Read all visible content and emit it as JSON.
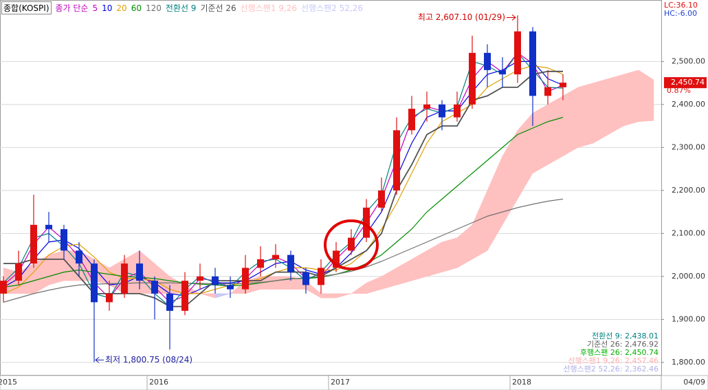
{
  "chart_data": {
    "type": "candlestick",
    "title": "종합(KOSPI)",
    "legend_prefix": "종가 단순",
    "categories": [
      "2015",
      null,
      null,
      null,
      null,
      null,
      null,
      null,
      null,
      null,
      "2016",
      null,
      null,
      null,
      null,
      null,
      null,
      null,
      null,
      null,
      null,
      null,
      "2017",
      null,
      null,
      null,
      null,
      null,
      null,
      null,
      null,
      null,
      null,
      null,
      "2018",
      null,
      null,
      null,
      null,
      null,
      null,
      null,
      null,
      null
    ],
    "open": [
      1960,
      1990,
      2030,
      2120,
      2110,
      2060,
      2030,
      1940,
      1960,
      2030,
      1990,
      1960,
      1920,
      1990,
      2000,
      1980,
      1970,
      2020,
      2040,
      2050,
      2010,
      1980,
      2020,
      2060,
      2090,
      2160,
      2200,
      2340,
      2390,
      2400,
      2370,
      2400,
      2520,
      2480,
      2470,
      2570,
      2420,
      2440,
      null,
      null,
      null,
      null,
      null,
      null
    ],
    "high": [
      2000,
      2060,
      2190,
      2150,
      2120,
      2080,
      2040,
      1990,
      2050,
      2060,
      2000,
      1980,
      2010,
      2030,
      2020,
      2000,
      2050,
      2070,
      2075,
      2060,
      2020,
      2040,
      2080,
      2110,
      2180,
      2230,
      2370,
      2420,
      2430,
      2410,
      2430,
      2560,
      2540,
      2510,
      2607.1,
      2580,
      2480,
      2470,
      null,
      null,
      null,
      null,
      null,
      null
    ],
    "low": [
      1940,
      1980,
      2020,
      2080,
      2040,
      2000,
      1800.75,
      1920,
      1950,
      1970,
      1900,
      1830,
      1910,
      1970,
      1960,
      1950,
      1960,
      2000,
      2020,
      1990,
      1960,
      1960,
      2010,
      2050,
      2080,
      2150,
      2190,
      2330,
      2360,
      2340,
      2360,
      2390,
      2440,
      2440,
      2450,
      2350,
      2400,
      2410,
      null,
      null,
      null,
      null,
      null,
      null
    ],
    "close": [
      1990,
      2030,
      2120,
      2110,
      2060,
      2030,
      1940,
      1960,
      2030,
      1990,
      1960,
      1920,
      1990,
      2000,
      1980,
      1970,
      2020,
      2040,
      2050,
      2010,
      1980,
      2020,
      2060,
      2090,
      2160,
      2200,
      2340,
      2390,
      2400,
      2370,
      2400,
      2520,
      2480,
      2470,
      2570,
      2420,
      2440,
      2450.74,
      null,
      null,
      null,
      null,
      null,
      null
    ],
    "up_color": "#e01010",
    "down_color": "#1030c8",
    "series": [
      {
        "name": "5",
        "color": "#c000c0",
        "values": [
          1980,
          2010,
          2075,
          2115,
          2085,
          2045,
          1985,
          1950,
          1995,
          2010,
          1975,
          1940,
          1955,
          1995,
          1990,
          1975,
          1995,
          2030,
          2045,
          2030,
          1995,
          2000,
          2040,
          2075,
          2125,
          2180,
          2270,
          2365,
          2395,
          2385,
          2385,
          2460,
          2500,
          2475,
          2520,
          2495,
          2430,
          2445,
          null,
          null,
          null,
          null,
          null,
          null
        ]
      },
      {
        "name": "10",
        "color": "#0000e0",
        "values": [
          1975,
          1995,
          2040,
          2080,
          2085,
          2065,
          2020,
          1980,
          1985,
          2000,
          1985,
          1960,
          1955,
          1970,
          1985,
          1985,
          1990,
          2010,
          2030,
          2035,
          2015,
          2005,
          2020,
          2055,
          2100,
          2150,
          2230,
          2310,
          2370,
          2385,
          2385,
          2430,
          2470,
          2480,
          2500,
          2500,
          2460,
          2445,
          null,
          null,
          null,
          null,
          null,
          null
        ]
      },
      {
        "name": "20",
        "color": "#e0a000",
        "values": [
          1960,
          1975,
          2010,
          2050,
          2070,
          2075,
          2045,
          2010,
          1995,
          1995,
          1990,
          1970,
          1960,
          1960,
          1970,
          1980,
          1985,
          1995,
          2010,
          2020,
          2020,
          2015,
          2015,
          2030,
          2060,
          2110,
          2170,
          2240,
          2310,
          2360,
          2380,
          2400,
          2440,
          2460,
          2480,
          2490,
          2485,
          2470,
          null,
          null,
          null,
          null,
          null,
          null
        ]
      },
      {
        "name": "60",
        "color": "#008c00",
        "values": [
          1975,
          1980,
          1990,
          2000,
          2010,
          2015,
          2010,
          2005,
          2000,
          1998,
          1995,
          1990,
          1985,
          1982,
          1980,
          1978,
          1980,
          1985,
          1990,
          1995,
          1995,
          1998,
          2005,
          2015,
          2030,
          2050,
          2080,
          2110,
          2150,
          2180,
          2210,
          2240,
          2270,
          2300,
          2330,
          2345,
          2360,
          2370,
          null,
          null,
          null,
          null,
          null,
          null
        ]
      },
      {
        "name": "120",
        "color": "#707070",
        "values": [
          1940,
          1950,
          1960,
          1968,
          1975,
          1980,
          1982,
          1983,
          1984,
          1985,
          1985,
          1985,
          1984,
          1984,
          1983,
          1983,
          1984,
          1986,
          1990,
          1994,
          1997,
          2000,
          2005,
          2012,
          2022,
          2035,
          2050,
          2065,
          2080,
          2095,
          2110,
          2125,
          2140,
          2150,
          2160,
          2168,
          2175,
          2180,
          null,
          null,
          null,
          null,
          null,
          null
        ]
      },
      {
        "name": "전환선 9",
        "color": "#008080",
        "values": [
          1985,
          2020,
          2090,
          2100,
          2070,
          2030,
          1960,
          1950,
          2010,
          2000,
          1960,
          1930,
          1970,
          2000,
          1985,
          1975,
          2010,
          2035,
          2040,
          2020,
          1990,
          2010,
          2050,
          2080,
          2150,
          2190,
          2310,
          2370,
          2390,
          2380,
          2395,
          2500,
          2490,
          2470,
          2520,
          2480,
          2440,
          2438.01,
          null,
          null,
          null,
          null,
          null,
          null
        ]
      },
      {
        "name": "기준선 26",
        "color": "#505050",
        "values": [
          2030,
          2030,
          2040,
          2040,
          2040,
          2000,
          1960,
          1960,
          1960,
          1960,
          1950,
          1930,
          1930,
          1960,
          1990,
          1990,
          1990,
          1990,
          2010,
          2010,
          2010,
          2000,
          2020,
          2040,
          2060,
          2100,
          2200,
          2260,
          2330,
          2350,
          2350,
          2410,
          2420,
          2440,
          2440,
          2470,
          2477,
          2476.92,
          null,
          null,
          null,
          null,
          null,
          null
        ]
      }
    ],
    "cloud": {
      "span1": {
        "name": "선행스팬1 9,26",
        "color": "#ffc0c0",
        "values": [
          2020,
          2010,
          2030,
          2050,
          2060,
          2060,
          2040,
          2020,
          2040,
          2060,
          2030,
          2000,
          1980,
          1960,
          1950,
          1960,
          1990,
          2000,
          2000,
          2000,
          1990,
          1960,
          1960,
          1960,
          1985,
          2000,
          2020,
          2040,
          2060,
          2080,
          2090,
          2120,
          2200,
          2280,
          2340,
          2380,
          2400,
          2420,
          2440,
          2450,
          2460,
          2470,
          2480,
          2457.46
        ]
      },
      "span2": {
        "name": "선행스팬2 52,26",
        "color": "#c8c8f8",
        "values": [
          1960,
          1960,
          1960,
          1980,
          1990,
          1990,
          1990,
          1980,
          1960,
          1960,
          1960,
          1960,
          1960,
          1960,
          1960,
          1960,
          1960,
          1970,
          1970,
          1970,
          1970,
          1950,
          1950,
          1960,
          1960,
          1970,
          1980,
          1990,
          2000,
          2010,
          2020,
          2040,
          2060,
          2120,
          2180,
          2240,
          2260,
          2280,
          2300,
          2310,
          2330,
          2350,
          2360,
          2362.46
        ]
      }
    },
    "ylim": [
      1771,
      2643
    ],
    "yticks": [
      {
        "value": 1800,
        "label": "1,800.00"
      },
      {
        "value": 1900,
        "label": "1,900.00"
      },
      {
        "value": 2000,
        "label": "2,000.00"
      },
      {
        "value": 2100,
        "label": "2,100.00"
      },
      {
        "value": 2200,
        "label": "2,200.00"
      },
      {
        "value": 2300,
        "label": "2,300.00"
      },
      {
        "value": 2400,
        "label": "2,400.00"
      },
      {
        "value": 2500,
        "label": "2,500.00"
      }
    ],
    "grid": true,
    "current_date": "04/09",
    "last_price": {
      "value": 2450.74,
      "label": "2,450.74"
    },
    "change_label": "0.87%",
    "top_labels": [
      "LC:36.10",
      "HC:-6.00"
    ],
    "annotations": [
      {
        "text": "최고 2,607.10 (01/29)",
        "value": 2607.1,
        "kind": "high"
      },
      {
        "text": "최저 1,800.75 (08/24)",
        "value": 1800.75,
        "kind": "low"
      }
    ],
    "info_lines": [
      {
        "text": "전환선 9: 2,438.01",
        "color": "#008080"
      },
      {
        "text": "기준선 26: 2,476.92",
        "color": "#606060"
      },
      {
        "text": "후행스팬 26: 2,450.74",
        "color": "#00b000"
      },
      {
        "text": "선행스팬1 9,26: 2,457.46",
        "color": "#ffb0b0"
      },
      {
        "text": "선행스팬2 52,26: 2,362.46",
        "color": "#b0b0e8"
      }
    ]
  }
}
